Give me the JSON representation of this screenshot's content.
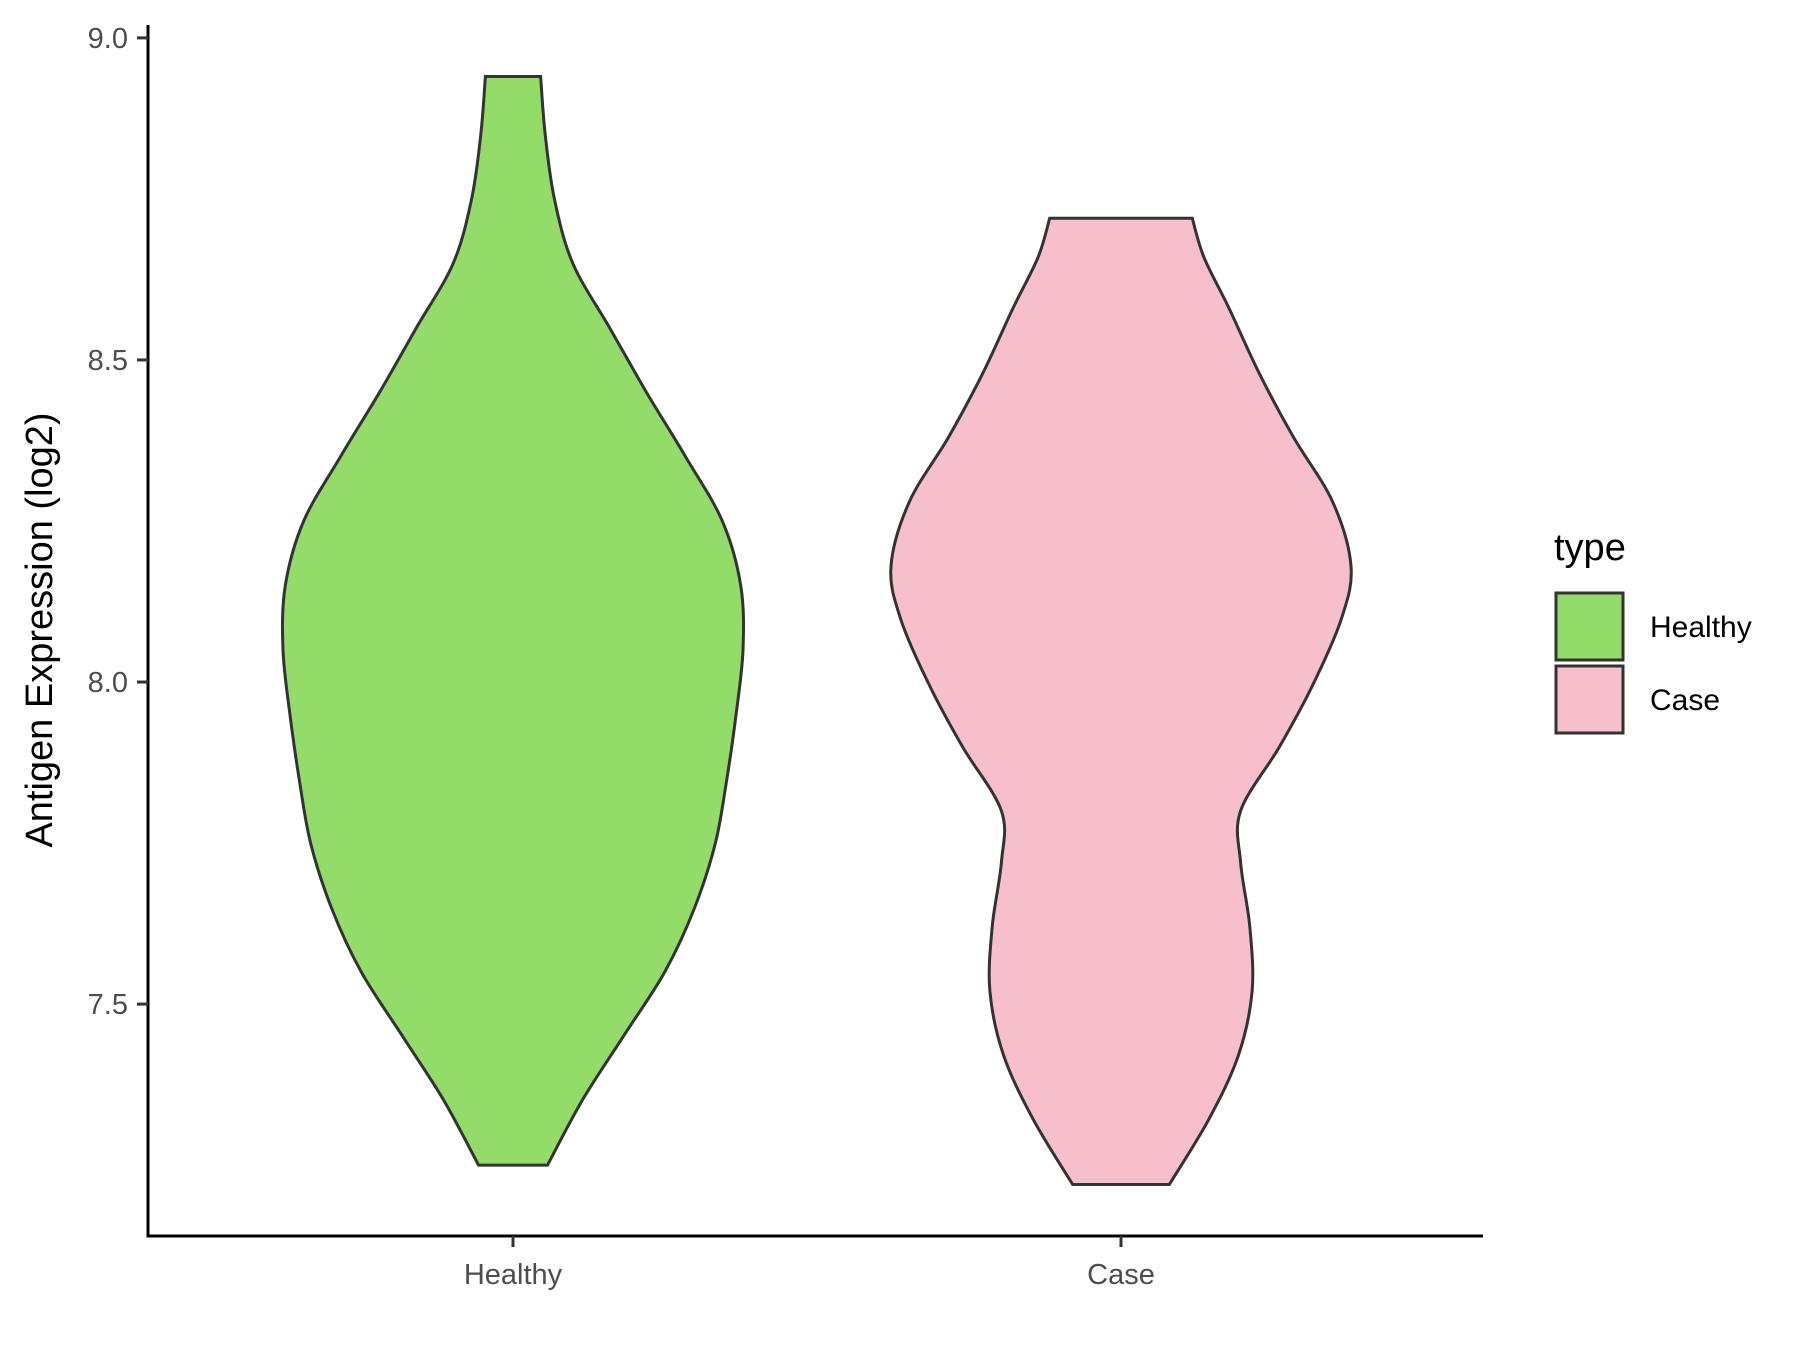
{
  "chart_data": {
    "type": "violin",
    "title": "",
    "xlabel": "",
    "ylabel": "Antigen Expression (log2)",
    "ylim": [
      7.14,
      9.02
    ],
    "y_ticks": [
      "7.5",
      "8.0",
      "8.5",
      "9.0"
    ],
    "y_tick_values": [
      7.5,
      8.0,
      8.5,
      9.0
    ],
    "categories": [
      "Healthy",
      "Case"
    ],
    "series": [
      {
        "name": "Healthy",
        "color": "#93DC6A",
        "min": 7.25,
        "max": 8.94,
        "density_profile": [
          [
            7.25,
            0.15
          ],
          [
            7.35,
            0.3
          ],
          [
            7.45,
            0.48
          ],
          [
            7.55,
            0.66
          ],
          [
            7.65,
            0.79
          ],
          [
            7.75,
            0.88
          ],
          [
            7.85,
            0.93
          ],
          [
            7.95,
            0.97
          ],
          [
            8.05,
            1.0
          ],
          [
            8.15,
            0.99
          ],
          [
            8.25,
            0.91
          ],
          [
            8.35,
            0.75
          ],
          [
            8.45,
            0.58
          ],
          [
            8.55,
            0.42
          ],
          [
            8.65,
            0.26
          ],
          [
            8.75,
            0.18
          ],
          [
            8.85,
            0.14
          ],
          [
            8.94,
            0.12
          ]
        ]
      },
      {
        "name": "Case",
        "color": "#F7BFCB",
        "min": 7.22,
        "max": 8.72,
        "density_profile": [
          [
            7.22,
            0.21
          ],
          [
            7.32,
            0.38
          ],
          [
            7.42,
            0.51
          ],
          [
            7.52,
            0.57
          ],
          [
            7.62,
            0.56
          ],
          [
            7.72,
            0.52
          ],
          [
            7.8,
            0.52
          ],
          [
            7.9,
            0.69
          ],
          [
            8.0,
            0.84
          ],
          [
            8.1,
            0.96
          ],
          [
            8.18,
            1.0
          ],
          [
            8.28,
            0.92
          ],
          [
            8.38,
            0.75
          ],
          [
            8.48,
            0.6
          ],
          [
            8.58,
            0.47
          ],
          [
            8.66,
            0.36
          ],
          [
            8.72,
            0.31
          ]
        ]
      }
    ],
    "legend": {
      "title": "type",
      "position": "right",
      "entries": [
        "Healthy",
        "Case"
      ]
    },
    "grid": false
  }
}
